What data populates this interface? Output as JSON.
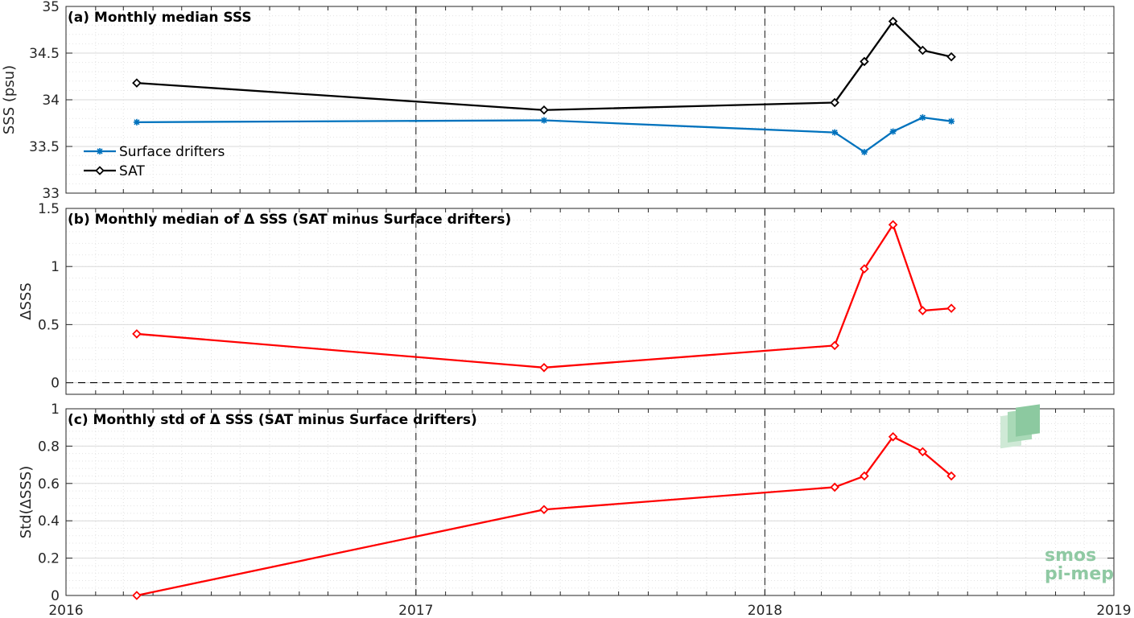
{
  "x_axis": {
    "tick_labels": [
      "2016",
      "2017",
      "2018",
      "2019"
    ],
    "range": [
      "2016-01-01",
      "2019-01-01"
    ]
  },
  "logo": {
    "line1": "smos",
    "line2": "pi-mep"
  },
  "colors": {
    "surface_drifters": "#0072bd",
    "sat": "#000000",
    "delta": "#ff0000",
    "grid": "#d9d9d9",
    "axes": "#262626"
  },
  "chart_data": [
    {
      "type": "line",
      "title": "(a) Monthly median SSS",
      "ylabel": "SSS (psu)",
      "ylim": [
        33,
        35
      ],
      "yticks": [
        33,
        33.5,
        34,
        34.5,
        35
      ],
      "ytick_labels": [
        "33",
        "33.5",
        "34",
        "34.5",
        "35"
      ],
      "grid": true,
      "legend": "left",
      "x": [
        "2016-03-15",
        "2017-05-15",
        "2018-03-15",
        "2018-04-15",
        "2018-05-15",
        "2018-06-15",
        "2018-07-15"
      ],
      "series": [
        {
          "name": "Surface drifters",
          "color": "#0072bd",
          "marker": "star",
          "x": [
            "2016-03-15",
            "2017-05-15",
            "2018-03-15",
            "2018-04-15",
            "2018-05-15",
            "2018-06-15",
            "2018-07-15"
          ],
          "values": [
            33.76,
            33.78,
            33.65,
            33.44,
            33.66,
            33.81,
            33.77
          ]
        },
        {
          "name": "SAT",
          "color": "#000000",
          "marker": "diamond",
          "x": [
            "2016-03-15",
            "2017-05-15",
            "2018-03-15",
            "2018-04-15",
            "2018-05-15",
            "2018-06-15",
            "2018-07-15"
          ],
          "values": [
            34.18,
            33.89,
            33.97,
            34.41,
            34.84,
            34.53,
            34.46
          ]
        }
      ]
    },
    {
      "type": "line",
      "title": "(b) Monthly median of Δ SSS (SAT minus Surface drifters)",
      "ylabel": "ΔSSS",
      "ylim": [
        -0.1,
        1.5
      ],
      "yticks": [
        0,
        0.5,
        1,
        1.5
      ],
      "ytick_labels": [
        "0",
        "0.5",
        "1",
        "1.5"
      ],
      "grid": true,
      "zero_line": true,
      "series": [
        {
          "color": "#ff0000",
          "marker": "diamond",
          "x": [
            "2016-03-15",
            "2017-05-15",
            "2018-03-15",
            "2018-04-15",
            "2018-05-15",
            "2018-06-15",
            "2018-07-15"
          ],
          "values": [
            0.42,
            0.13,
            0.32,
            0.98,
            1.36,
            0.62,
            0.64
          ]
        }
      ]
    },
    {
      "type": "line",
      "title": "(c) Monthly std of Δ SSS (SAT minus Surface drifters)",
      "ylabel": "Std(ΔSSS)",
      "ylim": [
        0,
        1
      ],
      "yticks": [
        0,
        0.2,
        0.4,
        0.6,
        0.8,
        1
      ],
      "ytick_labels": [
        "0",
        "0.2",
        "0.4",
        "0.6",
        "0.8",
        "1"
      ],
      "grid": true,
      "series": [
        {
          "color": "#ff0000",
          "marker": "diamond",
          "x": [
            "2016-03-15",
            "2017-05-15",
            "2018-03-15",
            "2018-04-15",
            "2018-05-15",
            "2018-06-15",
            "2018-07-15"
          ],
          "values": [
            0.0,
            0.46,
            0.58,
            0.64,
            0.85,
            0.77,
            0.64
          ]
        }
      ]
    }
  ]
}
